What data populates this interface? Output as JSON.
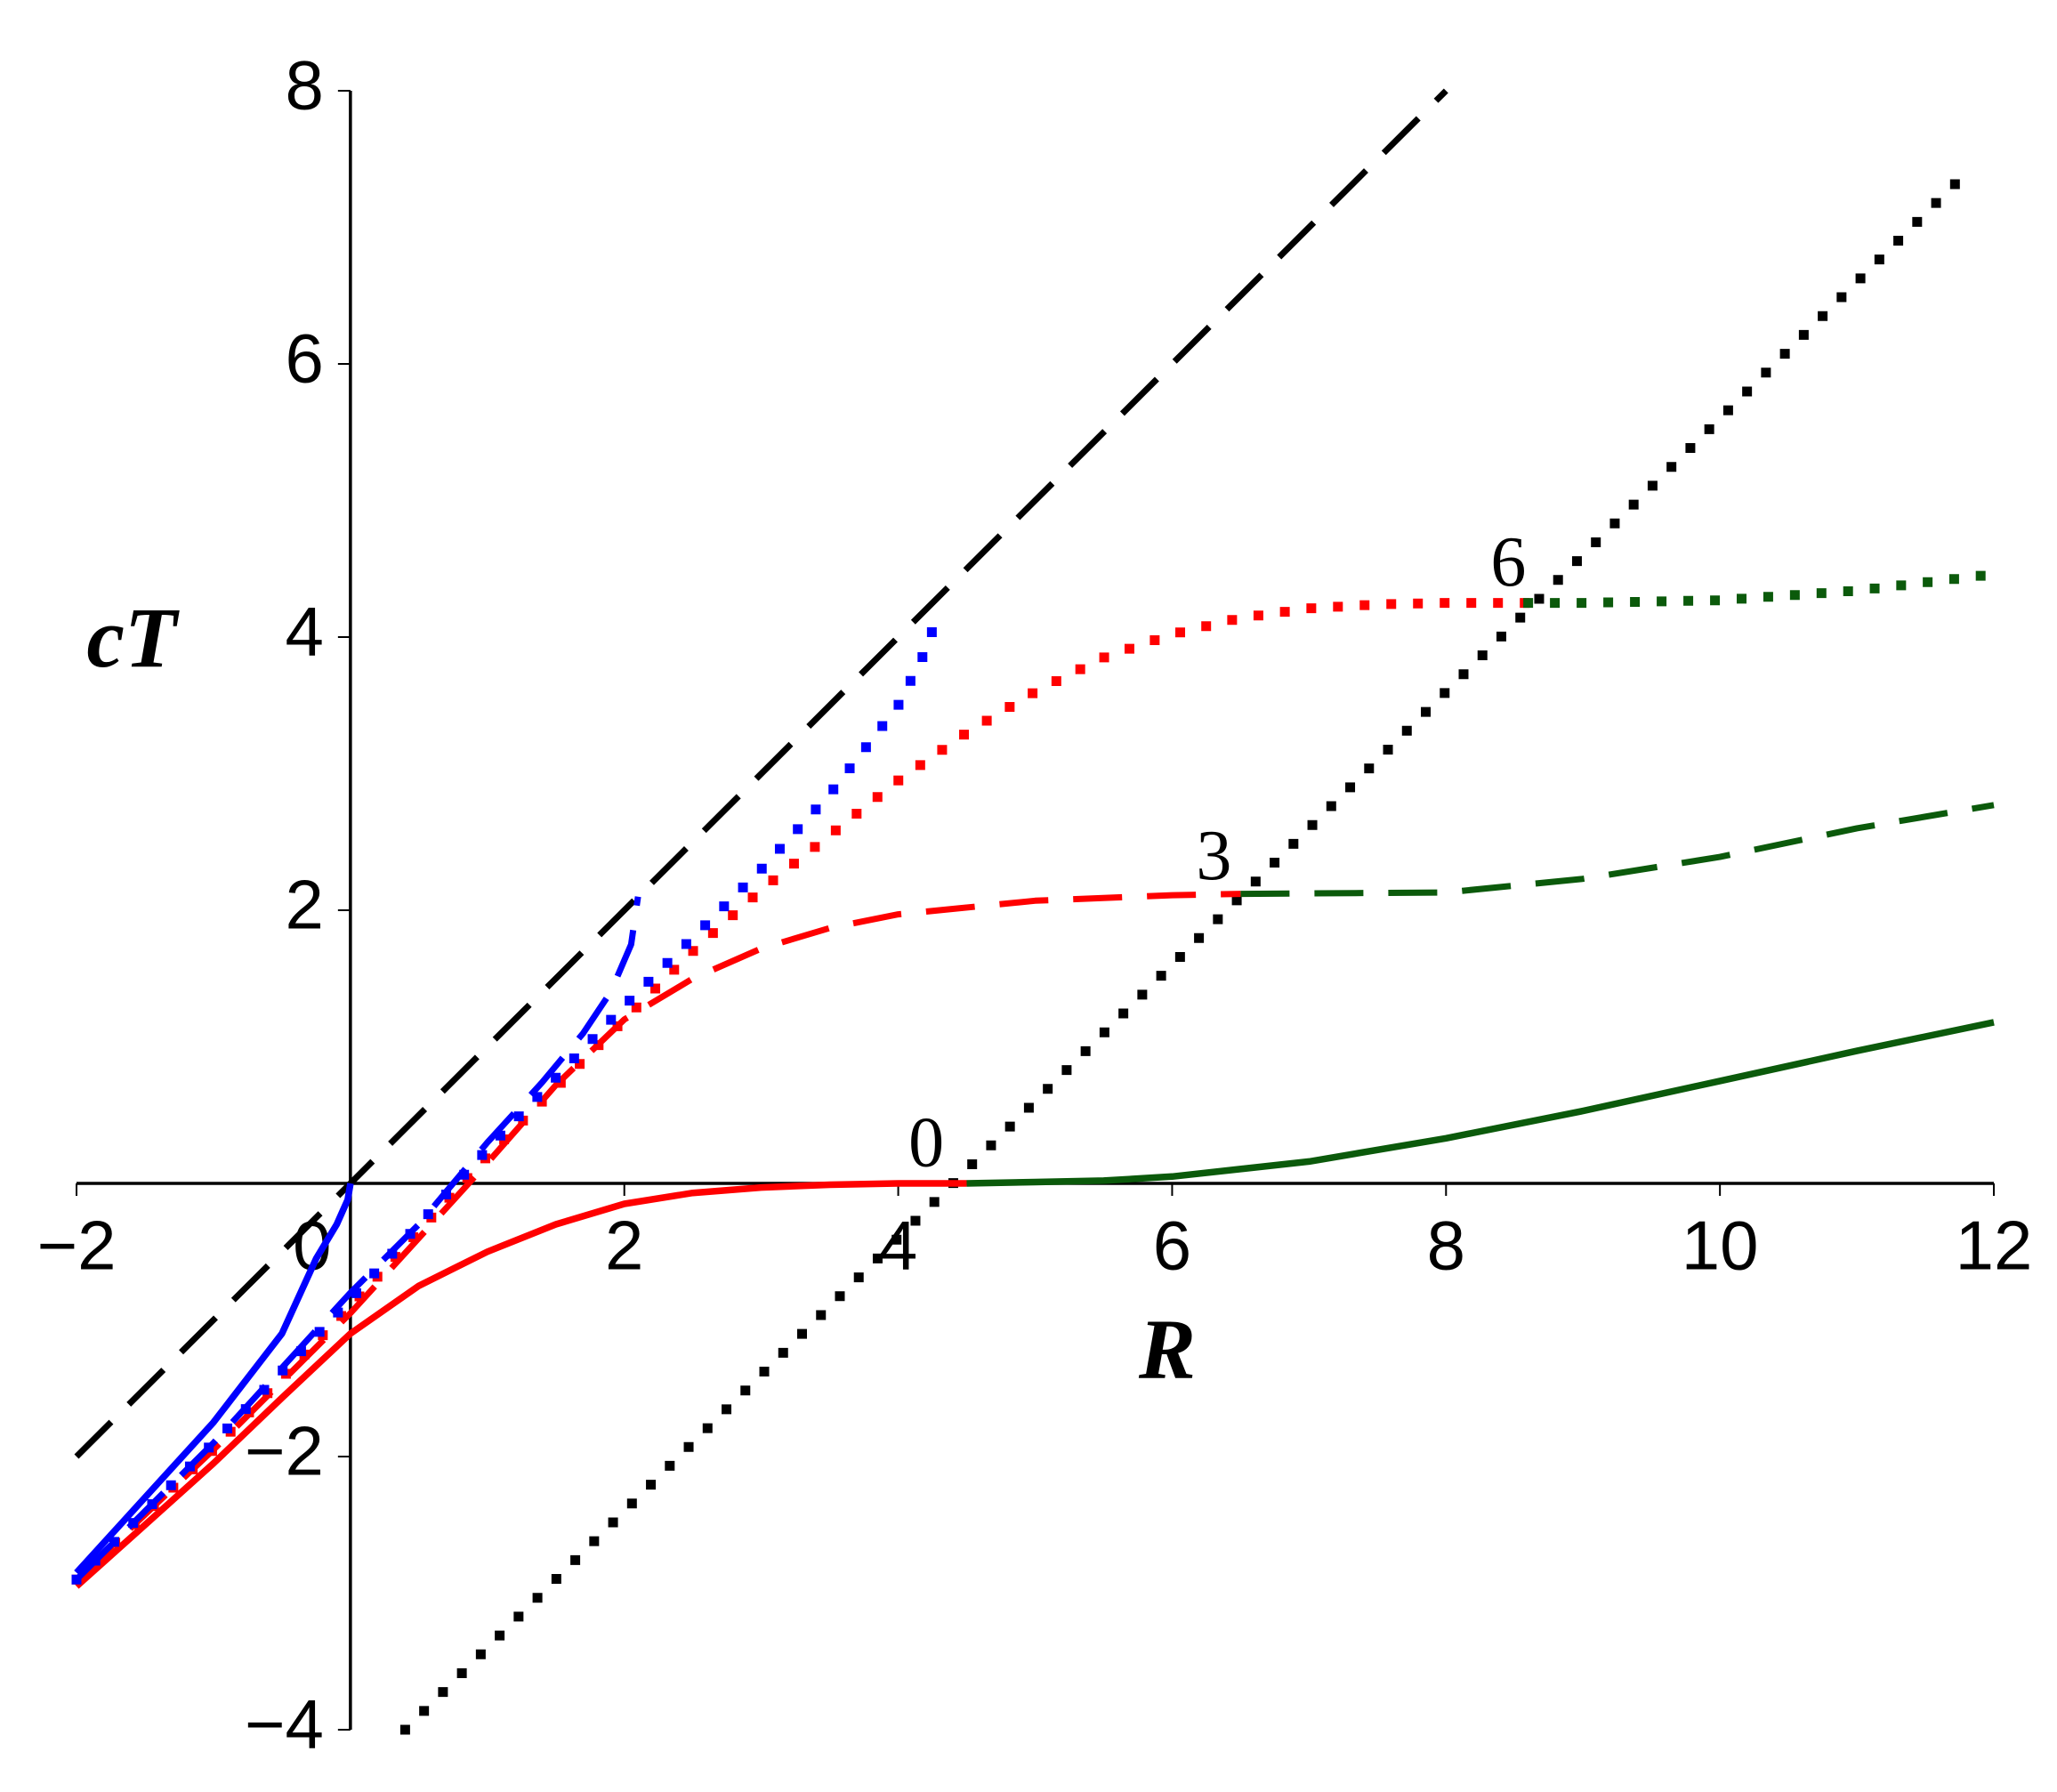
{
  "chart_data": {
    "type": "line",
    "xlabel": "R",
    "ylabel": "cT",
    "xlim": [
      -2,
      12
    ],
    "ylim": [
      -4,
      8
    ],
    "xticks": [
      {
        "value": -2,
        "label": "−2"
      },
      0,
      2,
      4,
      6,
      8,
      10,
      12
    ],
    "yticks": [
      {
        "value": -4,
        "label": "−4"
      },
      {
        "value": -2,
        "label": "−2"
      },
      2,
      4,
      6,
      8
    ],
    "series": [
      {
        "color": "#000000",
        "style": "dash",
        "x": [
          -2,
          8
        ],
        "values": [
          -2,
          8
        ]
      },
      {
        "color": "#000000",
        "style": "dot",
        "x": [
          0.4,
          11.8
        ],
        "values": [
          -4.0,
          7.4
        ]
      },
      {
        "color": "#ff0000",
        "style": "solid",
        "x": [
          -2,
          -1.5,
          -1,
          -0.5,
          0,
          0.5,
          1,
          1.5,
          2,
          2.5,
          3,
          3.5,
          4,
          4.5
        ],
        "values": [
          -2.95,
          -2.5,
          -2.05,
          -1.57,
          -1.1,
          -0.75,
          -0.5,
          -0.3,
          -0.15,
          -0.07,
          -0.03,
          -0.01,
          0,
          0
        ]
      },
      {
        "color": "#0b5a0b",
        "style": "solid",
        "x": [
          4.5,
          5,
          5.5,
          6,
          7,
          8,
          9,
          10,
          11,
          12
        ],
        "values": [
          0,
          0.01,
          0.02,
          0.05,
          0.16,
          0.33,
          0.53,
          0.75,
          0.97,
          1.18
        ]
      },
      {
        "color": "#ff0000",
        "style": "dash",
        "x": [
          -2,
          -1,
          0,
          0.5,
          1,
          1.5,
          2,
          2.5,
          3,
          3.5,
          4,
          5,
          6,
          6.5
        ],
        "values": [
          -2.9,
          -1.95,
          -0.95,
          -0.4,
          0.15,
          0.72,
          1.2,
          1.5,
          1.72,
          1.87,
          1.97,
          2.07,
          2.11,
          2.12
        ]
      },
      {
        "color": "#0b5a0b",
        "style": "dash",
        "x": [
          6.5,
          8,
          9,
          10,
          11,
          12
        ],
        "values": [
          2.12,
          2.13,
          2.23,
          2.39,
          2.6,
          2.77
        ]
      },
      {
        "color": "#ff0000",
        "style": "dot",
        "x": [
          -2,
          -1,
          0,
          0.5,
          1,
          1.5,
          2,
          2.5,
          3,
          3.5,
          4,
          4.5,
          5,
          5.5,
          6,
          6.5,
          7,
          7.5,
          8,
          8.6
        ],
        "values": [
          -2.9,
          -1.95,
          -0.9,
          -0.35,
          0.2,
          0.7,
          1.2,
          1.7,
          2.15,
          2.55,
          2.95,
          3.3,
          3.6,
          3.85,
          4.02,
          4.14,
          4.21,
          4.24,
          4.25,
          4.25
        ]
      },
      {
        "color": "#0b5a0b",
        "style": "dot",
        "x": [
          8.6,
          9,
          10,
          11,
          12
        ],
        "values": [
          4.25,
          4.25,
          4.27,
          4.34,
          4.46
        ]
      },
      {
        "color": "#0000ff",
        "style": "solid",
        "x": [
          -2,
          -1.5,
          -1,
          -0.5,
          -0.25,
          -0.1,
          -0.02,
          0
        ],
        "values": [
          -2.85,
          -2.3,
          -1.75,
          -1.1,
          -0.55,
          -0.3,
          -0.12,
          0
        ]
      },
      {
        "color": "#0000ff",
        "style": "dash",
        "x": [
          -2,
          -1,
          0,
          0.5,
          1,
          1.4,
          1.7,
          1.9,
          2.05,
          2.1
        ],
        "values": [
          -2.9,
          -1.9,
          -0.8,
          -0.3,
          0.3,
          0.74,
          1.1,
          1.4,
          1.75,
          2.1
        ]
      },
      {
        "color": "#0000ff",
        "style": "dot",
        "x": [
          -2,
          -1,
          0,
          1,
          2,
          2.5,
          3,
          3.5,
          4,
          4.2,
          4.3
        ],
        "values": [
          -2.9,
          -1.9,
          -0.85,
          0.25,
          1.3,
          1.8,
          2.3,
          2.85,
          3.5,
          3.9,
          4.2
        ]
      }
    ],
    "annotations": [
      {
        "text": "0",
        "x": 4.4,
        "y": 0
      },
      {
        "text": "3",
        "x": 6.5,
        "y": 2.1
      },
      {
        "text": "6",
        "x": 8.65,
        "y": 4.25
      }
    ]
  }
}
